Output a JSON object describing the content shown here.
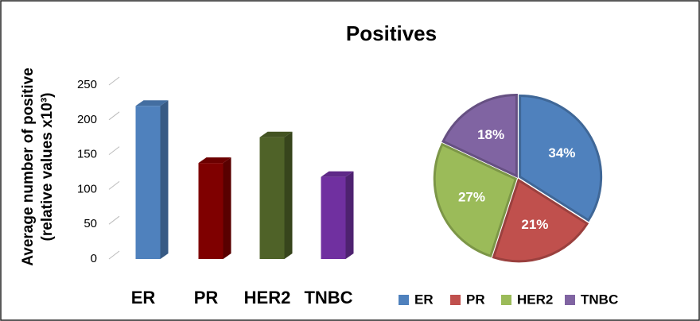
{
  "title": "Positives",
  "chart_data": [
    {
      "type": "bar",
      "y_label": [
        "Average number of positive",
        "(relative values x10³)"
      ],
      "categories": [
        "ER",
        "PR",
        "HER2",
        "TNBC"
      ],
      "values": [
        220,
        138,
        175,
        118
      ],
      "colors": [
        "#4f81bd",
        "#7f0000",
        "#4f6228",
        "#7030a0"
      ],
      "ylim": [
        0,
        250
      ],
      "yticks": [
        0,
        50,
        100,
        150,
        200,
        250
      ]
    },
    {
      "type": "pie",
      "categories": [
        "ER",
        "PR",
        "HER2",
        "TNBC"
      ],
      "values": [
        34,
        21,
        27,
        18
      ],
      "value_labels": [
        "34%",
        "21%",
        "27%",
        "18%"
      ],
      "colors": [
        "#4f81bd",
        "#c0504d",
        "#9bbb59",
        "#8064a2"
      ],
      "legend": "bottom"
    }
  ]
}
